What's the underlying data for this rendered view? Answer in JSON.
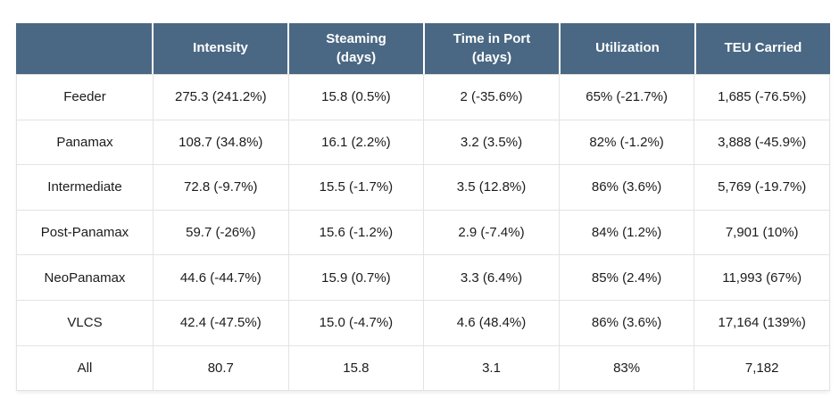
{
  "chart_data": {
    "type": "table",
    "columns": [
      "",
      "Intensity",
      "Steaming (days)",
      "Time in Port (days)",
      "Utilization",
      "TEU Carried"
    ],
    "rows": [
      {
        "category": "Feeder",
        "values": [
          "275.3 (241.2%)",
          "15.8 (0.5%)",
          "2 (-35.6%)",
          "65% (-21.7%)",
          "1,685 (-76.5%)"
        ]
      },
      {
        "category": "Panamax",
        "values": [
          "108.7 (34.8%)",
          "16.1 (2.2%)",
          "3.2 (3.5%)",
          "82% (-1.2%)",
          "3,888 (-45.9%)"
        ]
      },
      {
        "category": "Intermediate",
        "values": [
          "72.8 (-9.7%)",
          "15.5 (-1.7%)",
          "3.5 (12.8%)",
          "86% (3.6%)",
          "5,769 (-19.7%)"
        ]
      },
      {
        "category": "Post-Panamax",
        "values": [
          "59.7 (-26%)",
          "15.6 (-1.2%)",
          "2.9 (-7.4%)",
          "84% (1.2%)",
          "7,901 (10%)"
        ]
      },
      {
        "category": "NeoPanamax",
        "values": [
          "44.6 (-44.7%)",
          "15.9 (0.7%)",
          "3.3 (6.4%)",
          "85% (2.4%)",
          "11,993 (67%)"
        ]
      },
      {
        "category": "VLCS",
        "values": [
          "42.4 (-47.5%)",
          "15.0 (-4.7%)",
          "4.6 (48.4%)",
          "86% (3.6%)",
          "17,164 (139%)"
        ]
      },
      {
        "category": "All",
        "values": [
          "80.7",
          "15.8",
          "3.1",
          "83%",
          "7,182"
        ]
      }
    ]
  },
  "colors": {
    "header_bg": "#4a6883",
    "header_text": "#ffffff",
    "body_text": "#1c1c1c",
    "border": "#e3e3e3",
    "page_bg": "#ffffff"
  }
}
